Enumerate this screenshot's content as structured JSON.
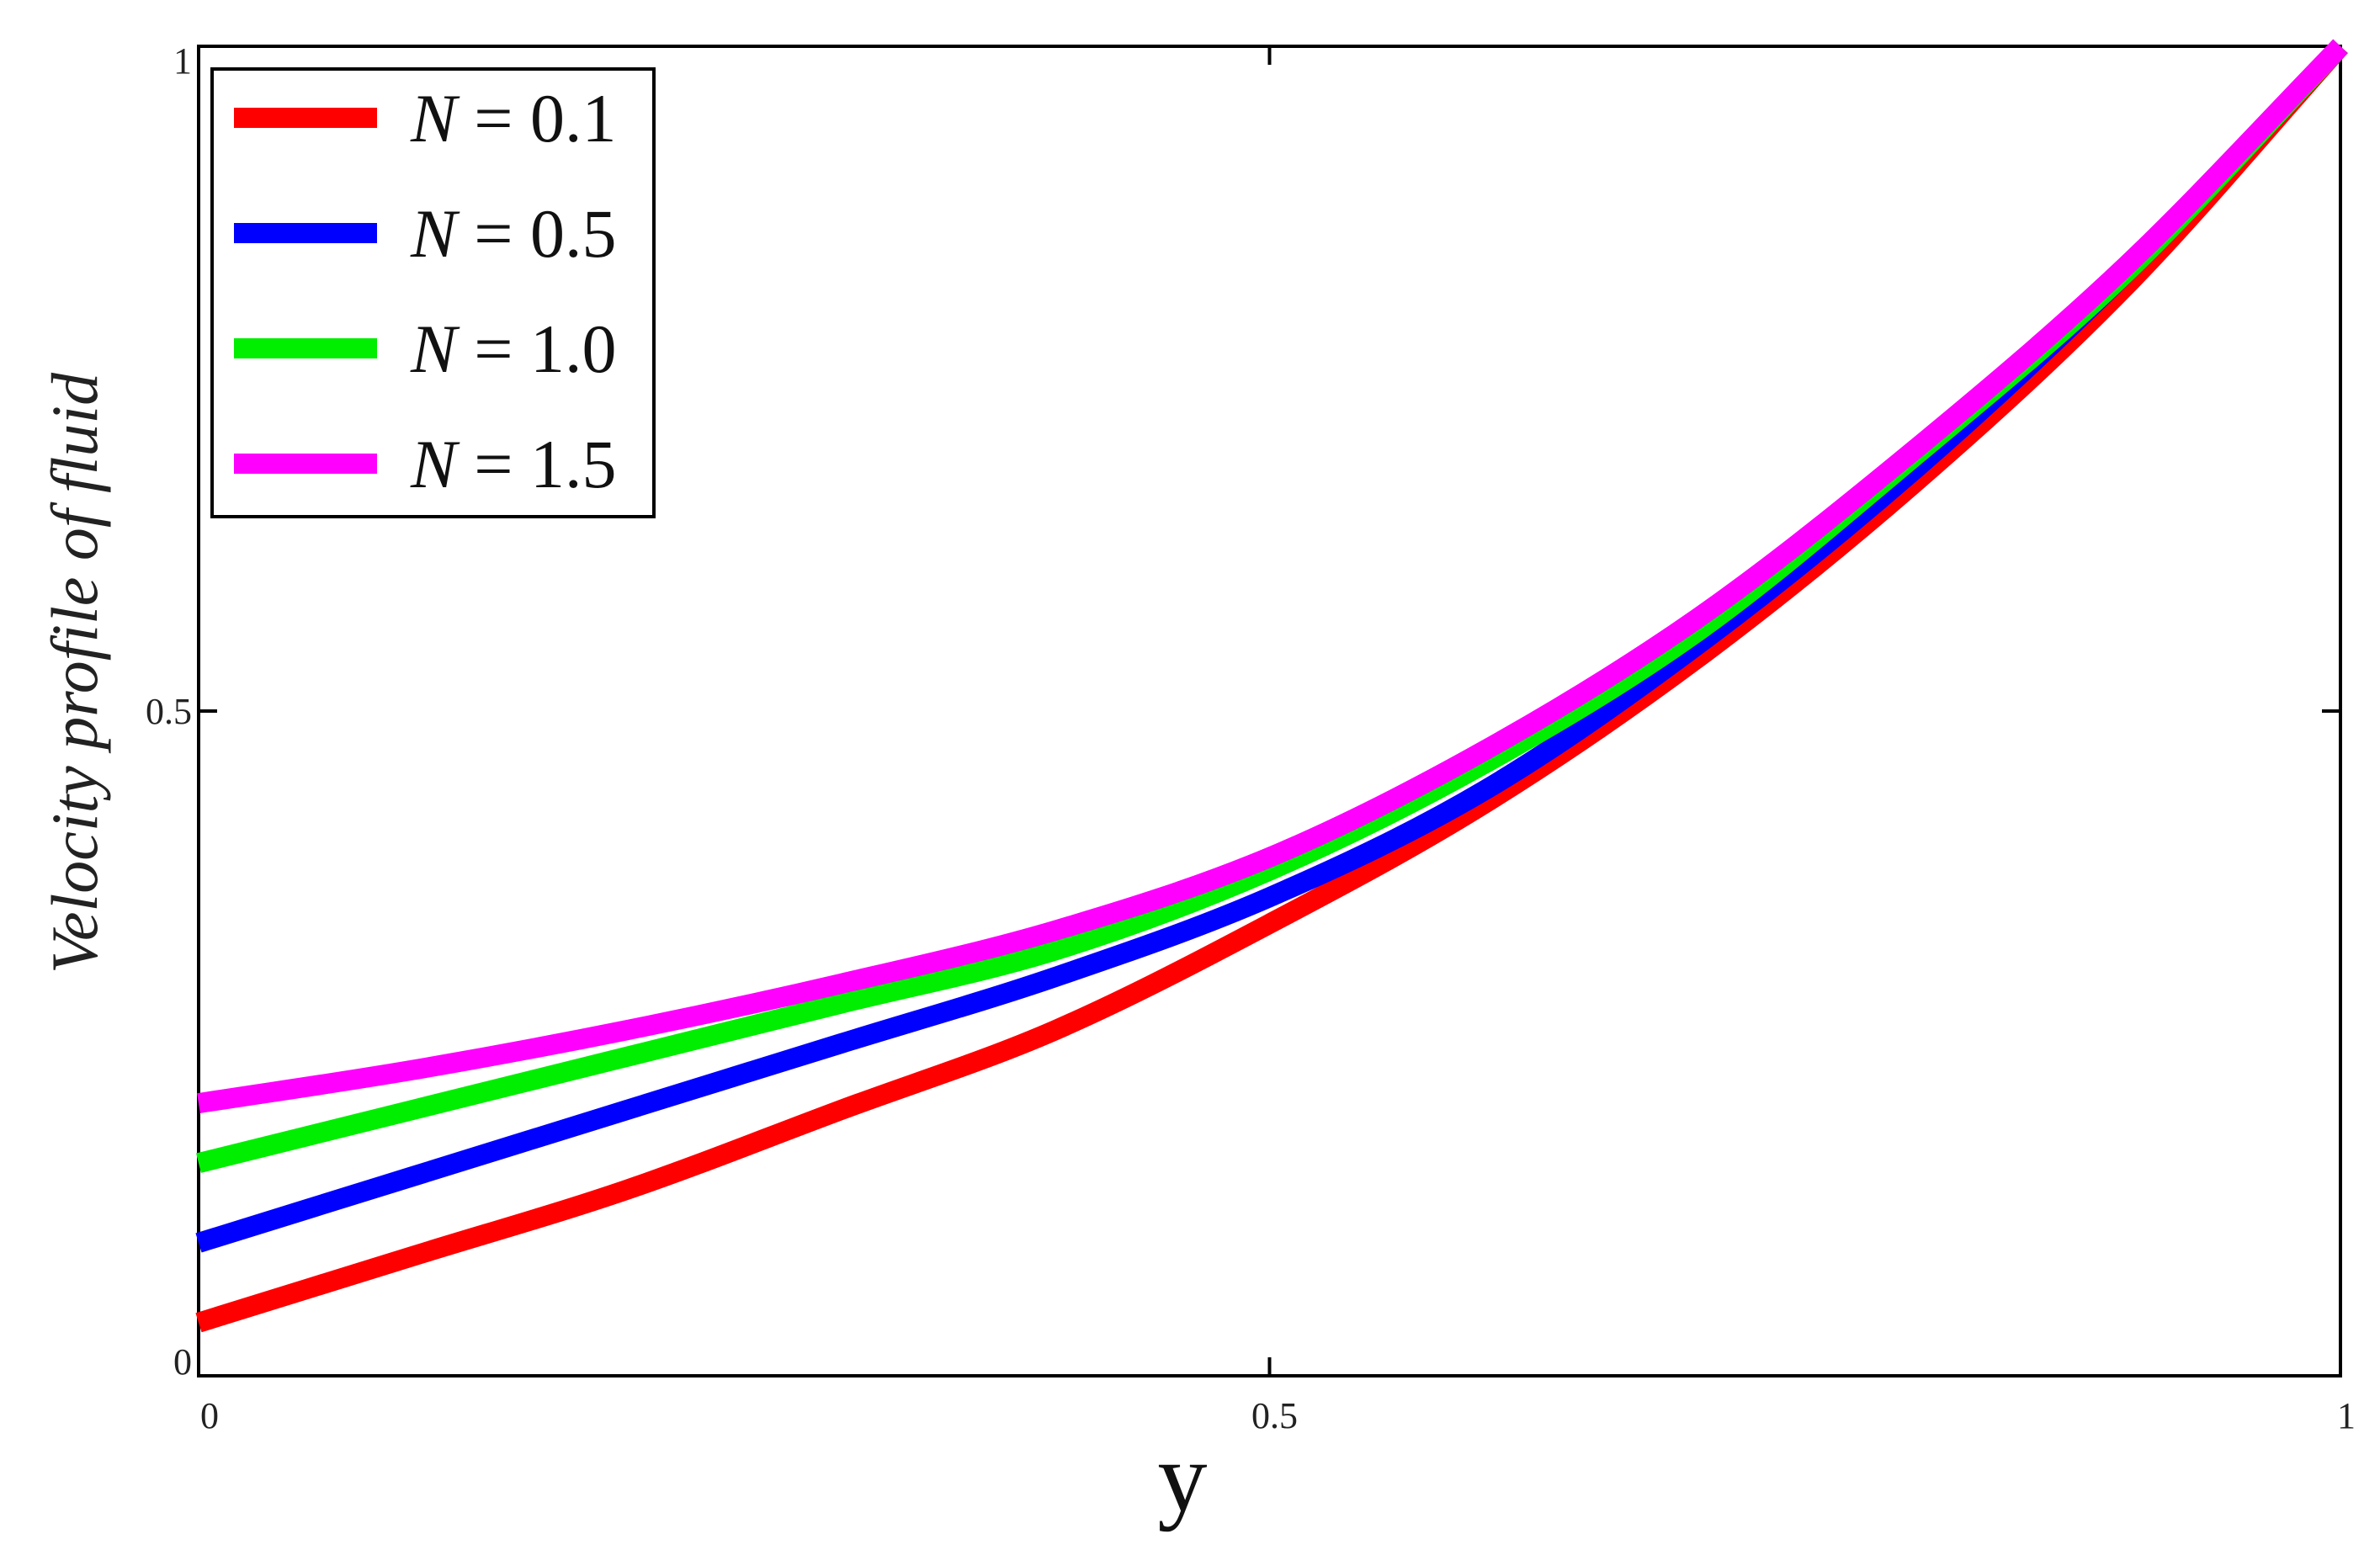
{
  "chart_data": {
    "type": "line",
    "title": "",
    "xlabel": "y",
    "ylabel": "Velocity profile of  fluid",
    "xlim": [
      0,
      1
    ],
    "ylim": [
      0,
      1
    ],
    "xticks": [
      {
        "value": 0,
        "label": "0"
      },
      {
        "value": 0.5,
        "label": "0.5"
      },
      {
        "value": 1,
        "label": "1"
      }
    ],
    "yticks": [
      {
        "value": 0,
        "label": "0"
      },
      {
        "value": 0.5,
        "label": "0.5"
      },
      {
        "value": 1,
        "label": "1"
      }
    ],
    "grid": false,
    "legend_position": "top-left",
    "x": [
      0,
      0.1,
      0.2,
      0.3,
      0.4,
      0.5,
      0.6,
      0.7,
      0.8,
      0.9,
      1.0
    ],
    "series": [
      {
        "name": "N = 0.1",
        "var": "N",
        "value": "0.1",
        "color": "#ff0000",
        "values": [
          0.04,
          0.09,
          0.14,
          0.2,
          0.26,
          0.34,
          0.43,
          0.54,
          0.67,
          0.82,
          1.0
        ]
      },
      {
        "name": "N = 0.5",
        "var": "N",
        "value": "0.5",
        "color": "#0000ff",
        "values": [
          0.1,
          0.15,
          0.2,
          0.25,
          0.3,
          0.36,
          0.44,
          0.55,
          0.68,
          0.83,
          1.0
        ]
      },
      {
        "name": "N = 1.0",
        "var": "N",
        "value": "1.0",
        "color": "#00ee00",
        "values": [
          0.16,
          0.2,
          0.24,
          0.28,
          0.32,
          0.38,
          0.46,
          0.56,
          0.69,
          0.83,
          1.0
        ]
      },
      {
        "name": "N = 1.5",
        "var": "N",
        "value": "1.5",
        "color": "#ff00ff",
        "values": [
          0.205,
          0.23,
          0.26,
          0.295,
          0.335,
          0.39,
          0.47,
          0.57,
          0.695,
          0.835,
          1.0
        ]
      }
    ]
  }
}
